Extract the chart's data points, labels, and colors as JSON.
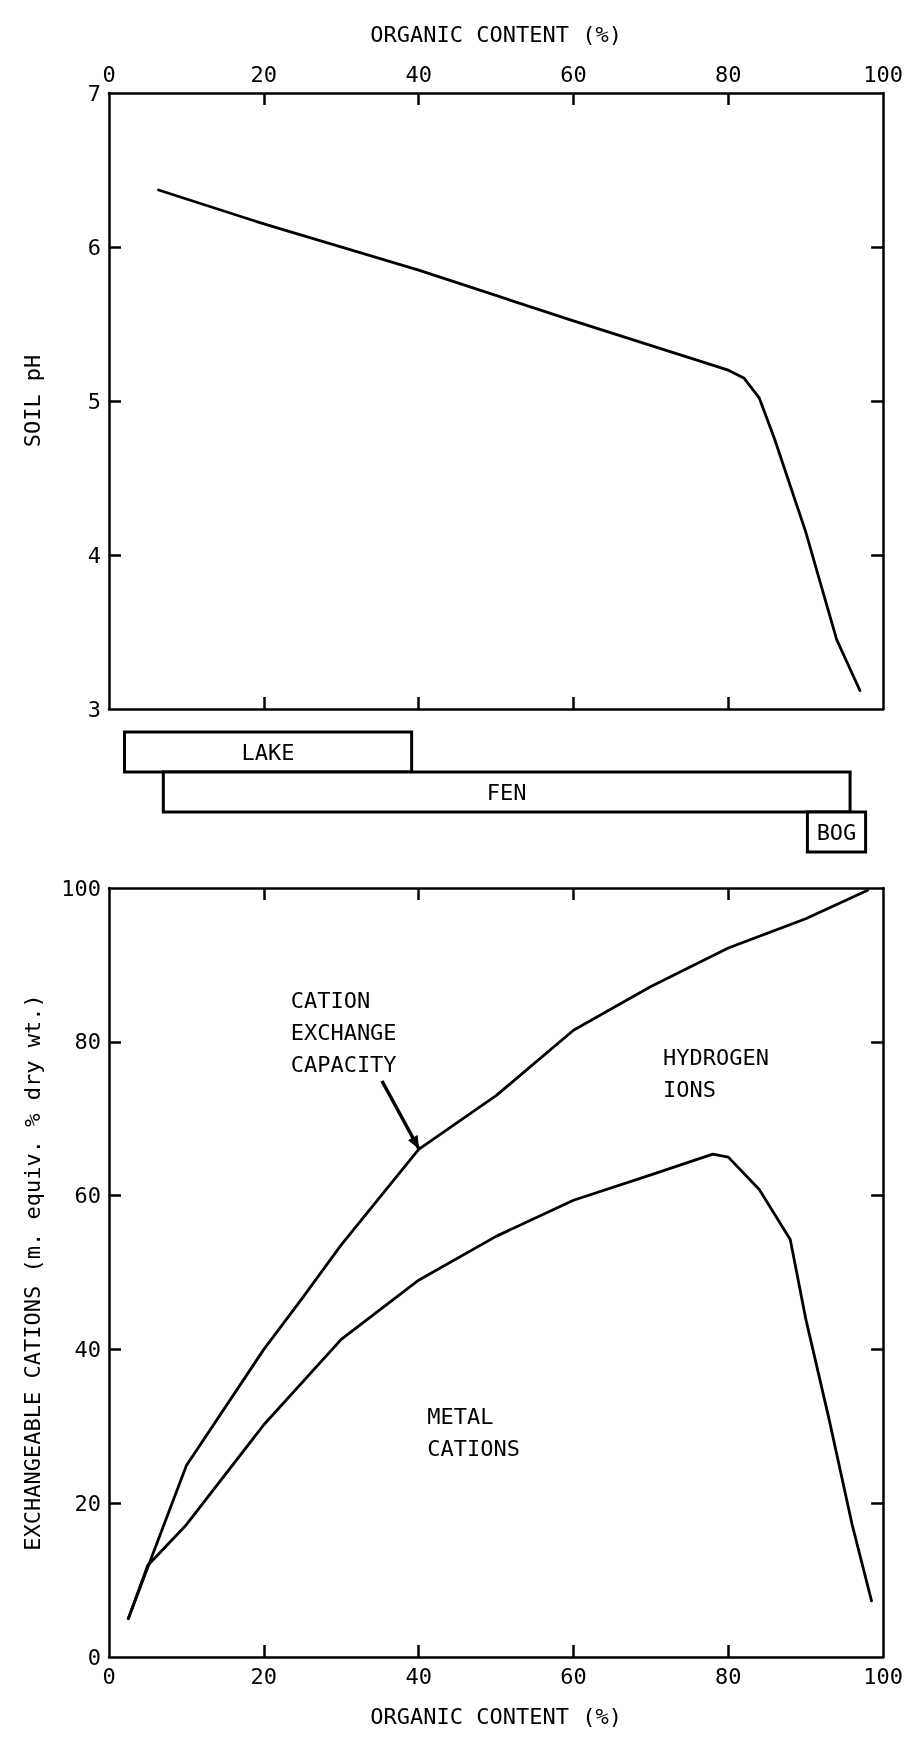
{
  "chart_data": [
    {
      "type": "line",
      "xlabel": "ORGANIC CONTENT (%)",
      "ylabel": "SOIL pH",
      "xlim": [
        0,
        100
      ],
      "xticks": [
        0,
        20,
        40,
        60,
        80,
        100
      ],
      "ylim": [
        3,
        7
      ],
      "yticks": [
        3,
        4,
        5,
        6,
        7
      ],
      "marker": "none",
      "line_style": "solid",
      "series": [
        {
          "color": "#000000",
          "x": [
            6.4,
            20,
            40,
            60,
            80,
            82,
            84,
            86,
            88,
            90,
            92,
            94,
            97
          ],
          "values": [
            6.37,
            6.15,
            5.85,
            5.52,
            5.2,
            5.15,
            5.02,
            4.75,
            4.45,
            4.15,
            3.8,
            3.45,
            3.12
          ]
        }
      ]
    },
    {
      "type": "bar",
      "orientation": "horizontal",
      "categories": [
        "LAKE",
        "FEN",
        "BOG"
      ],
      "base": [
        2,
        7,
        90
      ],
      "values": [
        37,
        88.5,
        7.5
      ],
      "color": "#ffffff",
      "xlim": [
        0,
        100
      ],
      "tick_labels": false
    },
    {
      "type": "line",
      "xlabel": "ORGANIC CONTENT (%)",
      "ylabel": "EXCHANGEABLE CATIONS (m. equiv. % dry wt.)",
      "xlim": [
        0,
        100
      ],
      "xticks": [
        0,
        20,
        40,
        60,
        80,
        100
      ],
      "ylim": [
        0,
        100
      ],
      "yticks": [
        0,
        20,
        40,
        60,
        80,
        100
      ],
      "marker": "none",
      "line_style": "solid",
      "annotations": [
        {
          "text": "CATION\nEXCHANGE\nCAPACITY",
          "x": 40,
          "y": 66
        },
        "HYDROGEN\nIONS",
        "METAL\nCATIONS"
      ],
      "series": [
        {
          "color": "#000000",
          "x": [
            2.5,
            10,
            20,
            25,
            30,
            40,
            50,
            60,
            70,
            80,
            90,
            98
          ],
          "values": [
            5,
            24.9,
            40,
            46.7,
            53.6,
            66,
            73,
            81.5,
            87.2,
            92.2,
            96,
            99.7
          ]
        },
        {
          "color": "#000000",
          "x": [
            2.5,
            5,
            10,
            20,
            30,
            40,
            50,
            60,
            70,
            78,
            80,
            84,
            88,
            90,
            93,
            96,
            98.5
          ],
          "values": [
            5,
            11.9,
            17.2,
            30.2,
            41.3,
            49,
            54.7,
            59.4,
            62.7,
            65.4,
            65,
            60.8,
            54.3,
            44,
            31,
            17.2,
            7.3
          ]
        }
      ]
    }
  ]
}
